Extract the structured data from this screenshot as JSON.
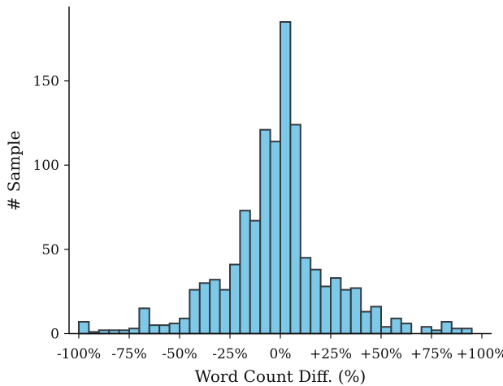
{
  "chart_data": {
    "type": "bar",
    "subtype": "histogram",
    "title": "",
    "xlabel": "Word Count Diff. (%)",
    "ylabel": "# Sample",
    "xlim": [
      -100,
      100
    ],
    "ylim": [
      0,
      190
    ],
    "bin_width": 5,
    "x_ticks": [
      "-100%",
      "-75%",
      "-50%",
      "-25%",
      "0%",
      "+25%",
      "+50%",
      "+75%",
      "+100%"
    ],
    "x_tick_values": [
      -100,
      -75,
      -50,
      -25,
      0,
      25,
      50,
      75,
      100
    ],
    "y_ticks": [
      0,
      50,
      100,
      150
    ],
    "grid": false,
    "bin_starts": [
      -100,
      -95,
      -90,
      -85,
      -80,
      -75,
      -70,
      -65,
      -60,
      -55,
      -50,
      -45,
      -40,
      -35,
      -30,
      -25,
      -20,
      -15,
      -10,
      -5,
      0,
      5,
      10,
      15,
      20,
      25,
      30,
      35,
      40,
      45,
      50,
      55,
      60,
      65,
      70,
      75,
      80,
      85,
      90
    ],
    "values": [
      7,
      1,
      2,
      2,
      2,
      3,
      15,
      5,
      5,
      6,
      9,
      26,
      30,
      32,
      26,
      41,
      73,
      67,
      121,
      114,
      185,
      124,
      45,
      38,
      28,
      33,
      26,
      27,
      13,
      16,
      4,
      9,
      6,
      0,
      4,
      2,
      7,
      3,
      3
    ],
    "bar_color": "#7ec8e8",
    "edge_color": "#333a40"
  }
}
